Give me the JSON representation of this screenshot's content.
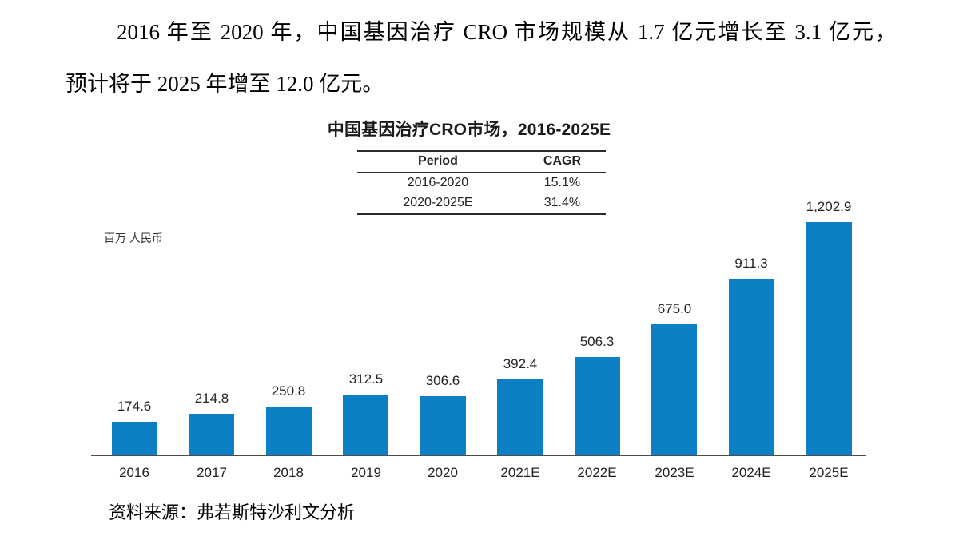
{
  "paragraph": {
    "line1": "2016 年至 2020 年，中国基因治疗 CRO 市场规模从 1.7 亿元增长至 3.1 亿元，",
    "line2": "预计将于 2025 年增至 12.0 亿元。"
  },
  "chart_data": {
    "type": "bar",
    "title": "中国基因治疗CRO市场，2016-2025E",
    "ylabel": "百万 人民币",
    "xlabel": "",
    "categories": [
      "2016",
      "2017",
      "2018",
      "2019",
      "2020",
      "2021E",
      "2022E",
      "2023E",
      "2024E",
      "2025E"
    ],
    "values": [
      174.6,
      214.8,
      250.8,
      312.5,
      306.6,
      392.4,
      506.3,
      675.0,
      911.3,
      1202.9
    ],
    "value_labels": [
      "174.6",
      "214.8",
      "250.8",
      "312.5",
      "306.6",
      "392.4",
      "506.3",
      "675.0",
      "911.3",
      "1,202.9"
    ],
    "ylim": [
      0,
      1300
    ],
    "grid": false,
    "legend": null,
    "bar_color": "#0C7FC5",
    "axis_color": "#4D4D4D",
    "cagr_table": {
      "headers": [
        "Period",
        "CAGR"
      ],
      "rows": [
        [
          "2016-2020",
          "15.1%"
        ],
        [
          "2020-2025E",
          "31.4%"
        ]
      ]
    }
  },
  "source": {
    "text": "资料来源：弗若斯特沙利文分析"
  }
}
